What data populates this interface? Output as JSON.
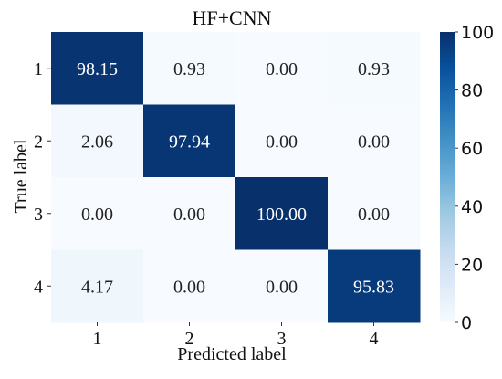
{
  "chart_data": {
    "type": "heatmap",
    "title": "HF+CNN",
    "xlabel": "Predicted label",
    "ylabel": "True label",
    "x_categories": [
      "1",
      "2",
      "3",
      "4"
    ],
    "y_categories": [
      "1",
      "2",
      "3",
      "4"
    ],
    "values": [
      [
        98.15,
        0.93,
        0.0,
        0.93
      ],
      [
        2.06,
        97.94,
        0.0,
        0.0
      ],
      [
        0.0,
        0.0,
        100.0,
        0.0
      ],
      [
        4.17,
        0.0,
        0.0,
        95.83
      ]
    ],
    "value_labels": [
      [
        "98.15",
        "0.93",
        "0.00",
        "0.93"
      ],
      [
        "2.06",
        "97.94",
        "0.00",
        "0.00"
      ],
      [
        "0.00",
        "0.00",
        "100.00",
        "0.00"
      ],
      [
        "4.17",
        "0.00",
        "0.00",
        "95.83"
      ]
    ],
    "colormap": "Blues",
    "color_low": "#f7fbff",
    "color_high": "#08306b",
    "vmin": 0,
    "vmax": 100,
    "colorbar_ticks": [
      0,
      20,
      40,
      60,
      80,
      100
    ],
    "colorbar_tick_labels": [
      "0",
      "20",
      "40",
      "60",
      "80",
      "100"
    ]
  }
}
